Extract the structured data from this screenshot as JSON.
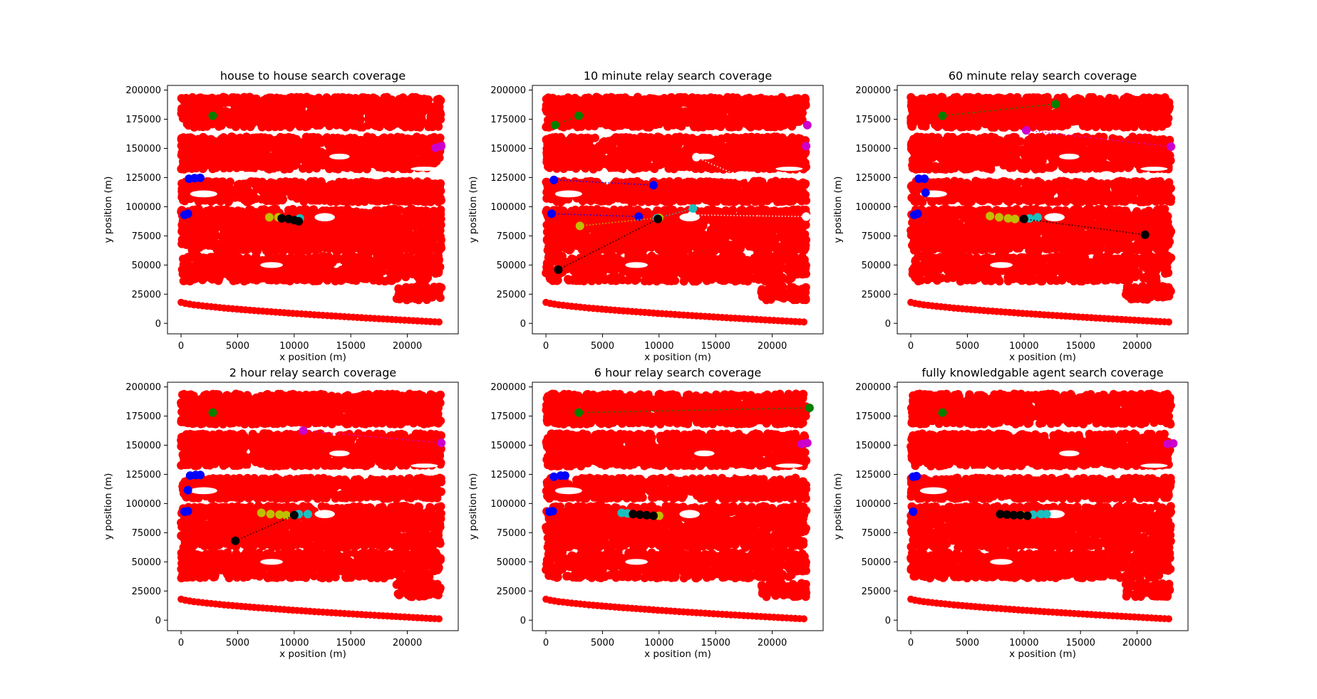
{
  "colors": {
    "coverage": "#ff0000",
    "blue": "#0000ff",
    "green": "#008000",
    "magenta": "#cc00cc",
    "yellow": "#bfbf00",
    "cyan": "#1cbfbf",
    "black": "#000000",
    "white": "#ffffff"
  },
  "chart_data": [
    {
      "type": "scatter",
      "title": "house to house search coverage",
      "xlabel": "x position (m)",
      "ylabel": "y position (m)",
      "xlim": [
        -1200,
        24500
      ],
      "ylim": [
        -9000,
        204000
      ],
      "xticks": [
        0,
        5000,
        10000,
        15000,
        20000
      ],
      "yticks": [
        0,
        25000,
        50000,
        75000,
        100000,
        125000,
        150000,
        175000,
        200000
      ],
      "series": [
        {
          "color": "green",
          "style": "dots",
          "points": [
            [
              2800,
              178000
            ]
          ]
        },
        {
          "color": "blue",
          "style": "dots",
          "points": [
            [
              700,
              124000
            ],
            [
              1200,
              124500
            ],
            [
              1700,
              124700
            ],
            [
              300,
              93000
            ],
            [
              600,
              94000
            ]
          ]
        },
        {
          "color": "magenta",
          "style": "dots",
          "points": [
            [
              22500,
              150500
            ],
            [
              23000,
              152000
            ]
          ]
        },
        {
          "color": "yellow",
          "style": "dots",
          "points": [
            [
              7800,
              91000
            ],
            [
              8600,
              91000
            ]
          ]
        },
        {
          "color": "cyan",
          "style": "dots",
          "points": [
            [
              10500,
              90000
            ]
          ]
        },
        {
          "color": "black",
          "style": "dots",
          "points": [
            [
              8900,
              90000
            ],
            [
              9500,
              89500
            ],
            [
              10000,
              88500
            ],
            [
              10400,
              87500
            ]
          ]
        }
      ]
    },
    {
      "type": "scatter",
      "title": "10 minute relay search coverage",
      "xlabel": "x position (m)",
      "ylabel": "y position (m)",
      "xlim": [
        -1200,
        24500
      ],
      "ylim": [
        -9000,
        204000
      ],
      "xticks": [
        0,
        5000,
        10000,
        15000,
        20000
      ],
      "yticks": [
        0,
        25000,
        50000,
        75000,
        100000,
        125000,
        150000,
        175000,
        200000
      ],
      "series": [
        {
          "color": "green",
          "style": "dotted",
          "points": [
            [
              800,
              170000
            ],
            [
              2900,
              178000
            ]
          ]
        },
        {
          "color": "blue",
          "style": "dotted",
          "points": [
            [
              700,
              123000
            ],
            [
              9500,
              118500
            ]
          ]
        },
        {
          "color": "blue",
          "style": "dotted",
          "points": [
            [
              500,
              94000
            ],
            [
              8200,
              91500
            ]
          ]
        },
        {
          "color": "magenta",
          "style": "dots",
          "points": [
            [
              23100,
              170000
            ],
            [
              23000,
              152000
            ]
          ]
        },
        {
          "color": "white",
          "style": "dotted",
          "points": [
            [
              13300,
              142500
            ],
            [
              17100,
              126000
            ]
          ]
        },
        {
          "color": "white",
          "style": "dotted",
          "points": [
            [
              12900,
              93000
            ],
            [
              23000,
              91500
            ]
          ]
        },
        {
          "color": "yellow",
          "style": "dotted",
          "points": [
            [
              3000,
              83500
            ],
            [
              10000,
              90500
            ]
          ]
        },
        {
          "color": "cyan",
          "style": "dotted",
          "points": [
            [
              9800,
              90000
            ],
            [
              13000,
              98500
            ]
          ]
        },
        {
          "color": "black",
          "style": "dotted",
          "points": [
            [
              1100,
              46000
            ],
            [
              9900,
              89500
            ]
          ]
        }
      ]
    },
    {
      "type": "scatter",
      "title": "60 minute relay search coverage",
      "xlabel": "x position (m)",
      "ylabel": "y position (m)",
      "xlim": [
        -1200,
        24500
      ],
      "ylim": [
        -9000,
        204000
      ],
      "xticks": [
        0,
        5000,
        10000,
        15000,
        20000
      ],
      "yticks": [
        0,
        25000,
        50000,
        75000,
        100000,
        125000,
        150000,
        175000,
        200000
      ],
      "series": [
        {
          "color": "green",
          "style": "dotted",
          "points": [
            [
              2800,
              178000
            ],
            [
              12800,
              188000
            ]
          ]
        },
        {
          "color": "magenta",
          "style": "dotted",
          "points": [
            [
              10200,
              165500
            ],
            [
              23000,
              151500
            ]
          ]
        },
        {
          "color": "blue",
          "style": "dots",
          "points": [
            [
              700,
              124000
            ],
            [
              1200,
              124000
            ],
            [
              1300,
              112000
            ],
            [
              300,
              93000
            ],
            [
              600,
              94000
            ]
          ]
        },
        {
          "color": "yellow",
          "style": "dots",
          "points": [
            [
              7000,
              92000
            ],
            [
              7800,
              91000
            ],
            [
              8600,
              90000
            ],
            [
              9200,
              89500
            ]
          ]
        },
        {
          "color": "cyan",
          "style": "dots",
          "points": [
            [
              10500,
              90000
            ],
            [
              11200,
              91000
            ]
          ]
        },
        {
          "color": "black",
          "style": "dotted",
          "points": [
            [
              10000,
              89500
            ],
            [
              20700,
              76000
            ]
          ]
        }
      ]
    },
    {
      "type": "scatter",
      "title": "2 hour relay search coverage",
      "xlabel": "x position (m)",
      "ylabel": "y position (m)",
      "xlim": [
        -1200,
        24500
      ],
      "ylim": [
        -9000,
        204000
      ],
      "xticks": [
        0,
        5000,
        10000,
        15000,
        20000
      ],
      "yticks": [
        0,
        25000,
        50000,
        75000,
        100000,
        125000,
        150000,
        175000,
        200000
      ],
      "series": [
        {
          "color": "green",
          "style": "dots",
          "points": [
            [
              2800,
              178000
            ]
          ]
        },
        {
          "color": "magenta",
          "style": "dotted",
          "points": [
            [
              10800,
              162500
            ],
            [
              23000,
              152000
            ]
          ]
        },
        {
          "color": "blue",
          "style": "dots",
          "points": [
            [
              800,
              124000
            ],
            [
              1300,
              124500
            ],
            [
              1700,
              124500
            ],
            [
              600,
              111500
            ],
            [
              300,
              93000
            ],
            [
              600,
              93500
            ]
          ]
        },
        {
          "color": "yellow",
          "style": "dots",
          "points": [
            [
              7100,
              92000
            ],
            [
              7900,
              91000
            ],
            [
              8700,
              90500
            ],
            [
              9300,
              90000
            ]
          ]
        },
        {
          "color": "cyan",
          "style": "dots",
          "points": [
            [
              10400,
              91000
            ],
            [
              11200,
              91000
            ]
          ]
        },
        {
          "color": "black",
          "style": "dotted",
          "points": [
            [
              4800,
              68000
            ],
            [
              10000,
              90000
            ]
          ]
        }
      ]
    },
    {
      "type": "scatter",
      "title": "6 hour relay search coverage",
      "xlabel": "x position (m)",
      "ylabel": "y position (m)",
      "xlim": [
        -1200,
        24500
      ],
      "ylim": [
        -9000,
        204000
      ],
      "xticks": [
        0,
        5000,
        10000,
        15000,
        20000
      ],
      "yticks": [
        0,
        25000,
        50000,
        75000,
        100000,
        125000,
        150000,
        175000,
        200000
      ],
      "series": [
        {
          "color": "green",
          "style": "dotted",
          "points": [
            [
              2900,
              178000
            ],
            [
              23300,
              182000
            ]
          ]
        },
        {
          "color": "blue",
          "style": "dots",
          "points": [
            [
              700,
              123000
            ],
            [
              1300,
              124000
            ],
            [
              1700,
              124000
            ],
            [
              300,
              93000
            ],
            [
              600,
              93500
            ]
          ]
        },
        {
          "color": "magenta",
          "style": "dots",
          "points": [
            [
              22600,
              151000
            ],
            [
              23100,
              152000
            ]
          ]
        },
        {
          "color": "cyan",
          "style": "dots",
          "points": [
            [
              6700,
              92000
            ],
            [
              7200,
              91500
            ]
          ]
        },
        {
          "color": "yellow",
          "style": "dots",
          "points": [
            [
              10000,
              89500
            ]
          ]
        },
        {
          "color": "black",
          "style": "dots",
          "points": [
            [
              7700,
              91000
            ],
            [
              8300,
              90500
            ],
            [
              8900,
              90000
            ],
            [
              9500,
              89500
            ]
          ]
        }
      ]
    },
    {
      "type": "scatter",
      "title": "fully knowledgable agent search coverage",
      "xlabel": "x position (m)",
      "ylabel": "y position (m)",
      "xlim": [
        -1200,
        24500
      ],
      "ylim": [
        -9000,
        204000
      ],
      "xticks": [
        0,
        5000,
        10000,
        15000,
        20000
      ],
      "yticks": [
        0,
        25000,
        50000,
        75000,
        100000,
        125000,
        150000,
        175000,
        200000
      ],
      "series": [
        {
          "color": "green",
          "style": "dots",
          "points": [
            [
              2800,
              178000
            ]
          ]
        },
        {
          "color": "blue",
          "style": "dots",
          "points": [
            [
              200,
              123000
            ],
            [
              500,
              123500
            ],
            [
              200,
              93000
            ]
          ]
        },
        {
          "color": "magenta",
          "style": "dots",
          "points": [
            [
              22700,
              151000
            ],
            [
              23200,
              151500
            ]
          ]
        },
        {
          "color": "yellow",
          "style": "dots",
          "points": [
            [
              9800,
              90000
            ]
          ]
        },
        {
          "color": "cyan",
          "style": "dots",
          "points": [
            [
              10800,
              90500
            ],
            [
              11500,
              91000
            ],
            [
              12000,
              91000
            ]
          ]
        },
        {
          "color": "black",
          "style": "dots",
          "points": [
            [
              7900,
              91000
            ],
            [
              8500,
              90500
            ],
            [
              9100,
              90000
            ],
            [
              9700,
              90000
            ],
            [
              10300,
              89500
            ]
          ]
        }
      ]
    }
  ]
}
